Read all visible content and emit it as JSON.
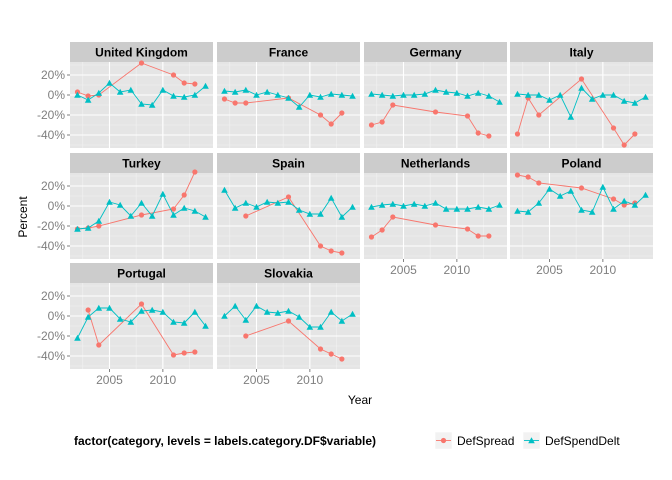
{
  "chart_data": {
    "type": "line",
    "xlabel": "Year",
    "ylabel": "Percent",
    "xlim": [
      2001.3,
      2014.7
    ],
    "ylim": [
      -53,
      33
    ],
    "x_ticks": [
      2005,
      2010
    ],
    "x_tick_labels": [
      "2005",
      "2010"
    ],
    "y_ticks": [
      20,
      0,
      -20,
      -40
    ],
    "y_tick_labels": [
      "20%",
      "0%",
      "-20%",
      "-40%"
    ],
    "grid": true,
    "legend": {
      "title": "factor(category, levels = labels.category.DF$variable)",
      "position": "bottom",
      "entries": [
        {
          "label": "DefSpread",
          "color": "#F8766D",
          "shape": "circle"
        },
        {
          "label": "DefSpendDelt",
          "color": "#00BFC4",
          "shape": "triangle"
        }
      ]
    },
    "panels": [
      {
        "name": "United Kingdom",
        "series": [
          {
            "name": "DefSpread",
            "x": [
              2002,
              2003,
              2004,
              2008,
              2011,
              2012,
              2013
            ],
            "y": [
              3,
              -1,
              0,
              32,
              20,
              12,
              11
            ]
          },
          {
            "name": "DefSpendDelt",
            "x": [
              2002,
              2003,
              2004,
              2005,
              2006,
              2007,
              2008,
              2009,
              2010,
              2011,
              2012,
              2013,
              2014
            ],
            "y": [
              0,
              -5,
              2,
              12,
              3,
              5,
              -9,
              -10,
              5,
              -1,
              -2,
              0,
              9
            ]
          }
        ]
      },
      {
        "name": "France",
        "series": [
          {
            "name": "DefSpread",
            "x": [
              2002,
              2003,
              2004,
              2008,
              2011,
              2012,
              2013
            ],
            "y": [
              -4,
              -8,
              -8,
              -3,
              -20,
              -29,
              -18
            ]
          },
          {
            "name": "DefSpendDelt",
            "x": [
              2002,
              2003,
              2004,
              2005,
              2006,
              2007,
              2008,
              2009,
              2010,
              2011,
              2012,
              2013,
              2014
            ],
            "y": [
              4,
              3,
              5,
              0,
              3,
              0,
              -3,
              -12,
              0,
              -2,
              1,
              0,
              -1
            ]
          }
        ]
      },
      {
        "name": "Germany",
        "series": [
          {
            "name": "DefSpread",
            "x": [
              2002,
              2003,
              2004,
              2008,
              2011,
              2012,
              2013
            ],
            "y": [
              -30,
              -27,
              -10,
              -17,
              -21,
              -38,
              -41
            ]
          },
          {
            "name": "DefSpendDelt",
            "x": [
              2002,
              2003,
              2004,
              2005,
              2006,
              2007,
              2008,
              2009,
              2010,
              2011,
              2012,
              2013,
              2014
            ],
            "y": [
              1,
              0,
              -1,
              0,
              0,
              1,
              5,
              3,
              2,
              -1,
              2,
              -1,
              -7
            ]
          }
        ]
      },
      {
        "name": "Italy",
        "series": [
          {
            "name": "DefSpread",
            "x": [
              2002,
              2003,
              2004,
              2008,
              2011,
              2012,
              2013
            ],
            "y": [
              -39,
              -3,
              -20,
              16,
              -33,
              -50,
              -39
            ]
          },
          {
            "name": "DefSpendDelt",
            "x": [
              2002,
              2003,
              2004,
              2005,
              2006,
              2007,
              2008,
              2009,
              2010,
              2011,
              2012,
              2013,
              2014
            ],
            "y": [
              1,
              0,
              0,
              -5,
              0,
              -22,
              7,
              -4,
              0,
              0,
              -6,
              -8,
              -2
            ]
          }
        ]
      },
      {
        "name": "Turkey",
        "series": [
          {
            "name": "DefSpread",
            "x": [
              2002,
              2003,
              2004,
              2008,
              2011,
              2012,
              2013
            ],
            "y": [
              -23,
              -22,
              -20,
              -9,
              -3,
              11,
              34
            ]
          },
          {
            "name": "DefSpendDelt",
            "x": [
              2002,
              2003,
              2004,
              2005,
              2006,
              2007,
              2008,
              2009,
              2010,
              2011,
              2012,
              2013,
              2014
            ],
            "y": [
              -23,
              -22,
              -15,
              4,
              1,
              -10,
              3,
              -10,
              12,
              -9,
              -2,
              -5,
              -11
            ]
          }
        ]
      },
      {
        "name": "Spain",
        "series": [
          {
            "name": "DefSpread",
            "x": [
              2004,
              2008,
              2011,
              2012,
              2013
            ],
            "y": [
              -10,
              9,
              -40,
              -45,
              -47
            ]
          },
          {
            "name": "DefSpendDelt",
            "x": [
              2002,
              2003,
              2004,
              2005,
              2006,
              2007,
              2008,
              2009,
              2010,
              2011,
              2012,
              2013,
              2014
            ],
            "y": [
              16,
              -2,
              3,
              -1,
              4,
              3,
              4,
              -4,
              -8,
              -8,
              8,
              -11,
              -1
            ]
          }
        ]
      },
      {
        "name": "Netherlands",
        "series": [
          {
            "name": "DefSpread",
            "x": [
              2002,
              2003,
              2004,
              2008,
              2011,
              2012,
              2013
            ],
            "y": [
              -31,
              -24,
              -11,
              -19,
              -23,
              -30,
              -30
            ]
          },
          {
            "name": "DefSpendDelt",
            "x": [
              2002,
              2003,
              2004,
              2005,
              2006,
              2007,
              2008,
              2009,
              2010,
              2011,
              2012,
              2013,
              2014
            ],
            "y": [
              -1,
              1,
              2,
              0,
              2,
              0,
              3,
              -3,
              -3,
              -3,
              -1,
              -3,
              1
            ]
          }
        ]
      },
      {
        "name": "Poland",
        "series": [
          {
            "name": "DefSpread",
            "x": [
              2002,
              2003,
              2004,
              2008,
              2011,
              2012,
              2013
            ],
            "y": [
              31,
              29,
              23,
              18,
              7,
              1,
              3
            ]
          },
          {
            "name": "DefSpendDelt",
            "x": [
              2002,
              2003,
              2004,
              2005,
              2006,
              2007,
              2008,
              2009,
              2010,
              2011,
              2012,
              2013,
              2014
            ],
            "y": [
              -5,
              -6,
              3,
              17,
              10,
              15,
              -4,
              -6,
              19,
              -3,
              5,
              1,
              11
            ]
          }
        ]
      },
      {
        "name": "Portugal",
        "series": [
          {
            "name": "DefSpread",
            "x": [
              2003,
              2004,
              2008,
              2011,
              2012,
              2013
            ],
            "y": [
              6,
              -29,
              12,
              -39,
              -37,
              -36
            ]
          },
          {
            "name": "DefSpendDelt",
            "x": [
              2002,
              2003,
              2004,
              2005,
              2006,
              2007,
              2008,
              2009,
              2010,
              2011,
              2012,
              2013,
              2014
            ],
            "y": [
              -22,
              -1,
              8,
              8,
              -3,
              -6,
              5,
              6,
              4,
              -6,
              -7,
              4,
              -10
            ]
          }
        ]
      },
      {
        "name": "Slovakia",
        "series": [
          {
            "name": "DefSpread",
            "x": [
              2004,
              2008,
              2011,
              2012,
              2013
            ],
            "y": [
              -20,
              -5,
              -33,
              -38,
              -43
            ]
          },
          {
            "name": "DefSpendDelt",
            "x": [
              2002,
              2003,
              2004,
              2005,
              2006,
              2007,
              2008,
              2009,
              2010,
              2011,
              2012,
              2013,
              2014
            ],
            "y": [
              0,
              10,
              -4,
              10,
              4,
              3,
              5,
              -1,
              -11,
              -11,
              4,
              -5,
              2
            ]
          }
        ]
      }
    ]
  }
}
